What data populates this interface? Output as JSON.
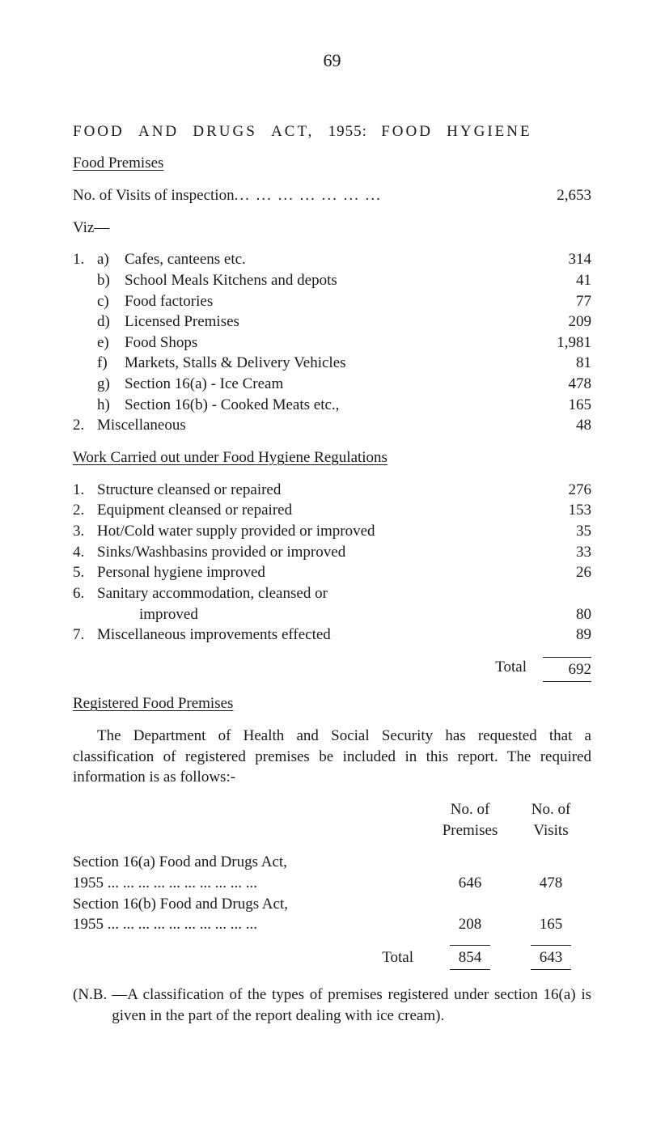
{
  "page_number": "69",
  "main_title_parts": {
    "p1": "FOOD",
    "p2": "AND",
    "p3": "DRUGS",
    "p4": "ACT,",
    "p5": "1955:",
    "p6": "FOOD",
    "p7": "HYGIENE"
  },
  "food_premises_heading": "Food Premises",
  "visits": {
    "label": "No. of Visits of inspection",
    "dots": " ... ... ... ... ... ... ...",
    "value": "2,653"
  },
  "viz_label": "Viz—",
  "section1": {
    "num1": "1.",
    "items": [
      {
        "letter": "a)",
        "label": "Cafes, canteens etc.",
        "value": "314"
      },
      {
        "letter": "b)",
        "label": "School Meals Kitchens and depots",
        "value": "41"
      },
      {
        "letter": "c)",
        "label": "Food factories",
        "value": "77"
      },
      {
        "letter": "d)",
        "label": "Licensed Premises",
        "value": "209"
      },
      {
        "letter": "e)",
        "label": "Food Shops",
        "value": "1,981"
      },
      {
        "letter": "f)",
        "label": "Markets, Stalls & Delivery Vehicles",
        "value": "81"
      },
      {
        "letter": "g)",
        "label": "Section 16(a) - Ice Cream",
        "value": "478"
      },
      {
        "letter": "h)",
        "label": "Section 16(b) - Cooked Meats etc.,",
        "value": "165"
      }
    ],
    "num2": "2.",
    "misc_label": "Miscellaneous",
    "misc_value": "48"
  },
  "work_title": "Work  Carried  out  under  Food  Hygiene  Regulations",
  "work_items": [
    {
      "num": "1.",
      "label": "Structure cleansed or repaired",
      "value": "276"
    },
    {
      "num": "2.",
      "label": "Equipment cleansed or repaired",
      "value": "153"
    },
    {
      "num": "3.",
      "label": "Hot/Cold water supply provided or improved",
      "value": "35"
    },
    {
      "num": "4.",
      "label": "Sinks/Washbasins provided or improved",
      "value": "33"
    },
    {
      "num": "5.",
      "label": "Personal hygiene improved",
      "value": "26"
    },
    {
      "num": "6.",
      "label": "Sanitary accommodation, cleansed or",
      "value": ""
    },
    {
      "num": "",
      "label": "improved",
      "value": "80"
    },
    {
      "num": "7.",
      "label": "Miscellaneous improvements effected",
      "value": "89"
    }
  ],
  "work_total": {
    "label": "Total",
    "value": "692"
  },
  "registered_heading": "Registered Food Premises",
  "dept_paragraph": "The Department of Health and Social Security has requested that a classification of registered premises be included in this report. The required information is as follows:-",
  "reg_table": {
    "header_premises_l1": "No. of",
    "header_premises_l2": "Premises",
    "header_visits_l1": "No. of",
    "header_visits_l2": "Visits",
    "rows": [
      {
        "label_l1": "Section 16(a) Food and Drugs Act,",
        "label_l2": "1955 ... ... ... ... ... ... ... ... ... ...",
        "premises": "646",
        "visits": "478"
      },
      {
        "label_l1": "Section 16(b) Food and Drugs Act,",
        "label_l2": "1955 ... ... ... ... ... ... ... ... ... ...",
        "premises": "208",
        "visits": "165"
      }
    ],
    "total_label": "Total",
    "total_premises": "854",
    "total_visits": "643"
  },
  "nb": {
    "prefix": "(N.B.",
    "text": "—A classification of the types of premises registered under section 16(a) is given in the part of the report dealing with ice cream)."
  }
}
